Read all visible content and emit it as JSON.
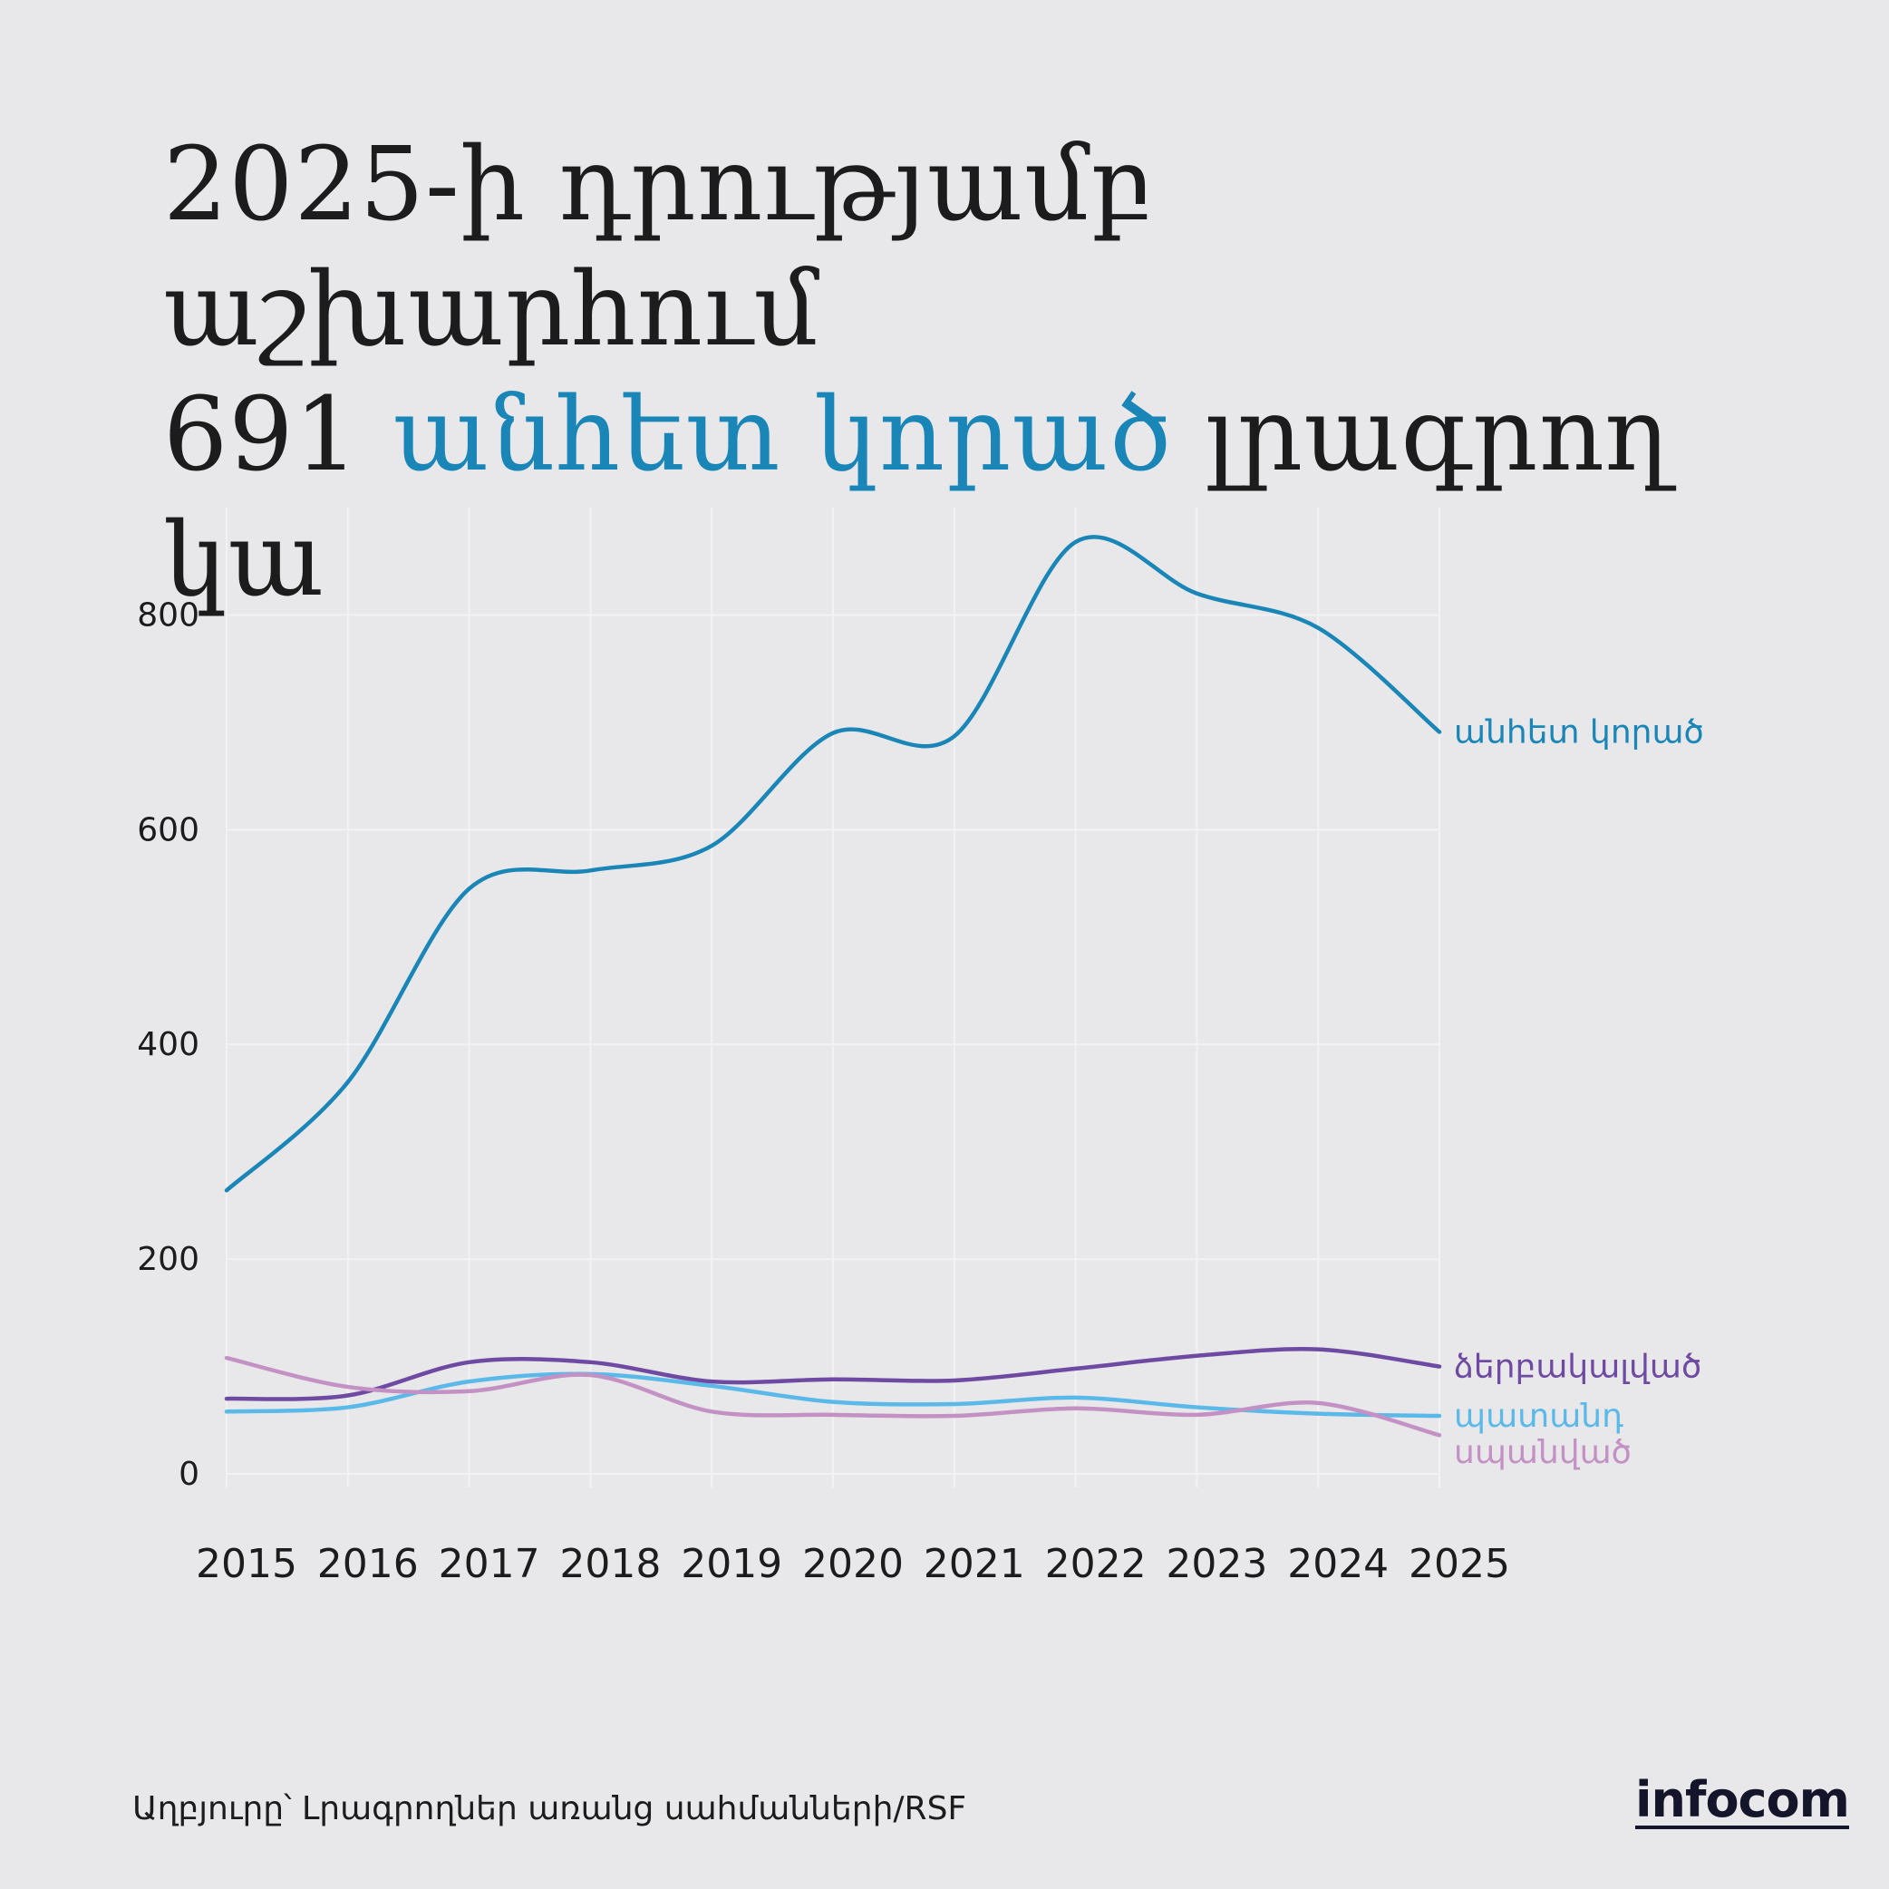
{
  "title": {
    "line1": "2025-ի դրությամբ աշխարհում",
    "line2_prefix": "691 ",
    "line2_highlight": "անհետ կորած",
    "line2_suffix": " լրագրող կա"
  },
  "source": "Աղբյուրը՝ Լրագրողներ առանց սահմանների/RSF",
  "brand": "infocom",
  "chart_data": {
    "type": "line",
    "x": [
      2015,
      2016,
      2017,
      2018,
      2019,
      2020,
      2021,
      2022,
      2023,
      2024,
      2025
    ],
    "ylim": [
      0,
      900
    ],
    "yticks": [
      0,
      200,
      400,
      600,
      800
    ],
    "grid": true,
    "series": [
      {
        "name": "անհետ կորած",
        "color": "#1a86b8",
        "values": [
          264,
          365,
          545,
          562,
          585,
          690,
          687,
          868,
          820,
          788,
          691
        ]
      },
      {
        "name": "ձերբակալված",
        "color": "#6f4aa2",
        "values": [
          70,
          73,
          104,
          104,
          86,
          88,
          87,
          98,
          110,
          116,
          100
        ]
      },
      {
        "name": "պատանդ",
        "color": "#5ab9e8",
        "values": [
          58,
          62,
          86,
          93,
          82,
          67,
          65,
          71,
          62,
          56,
          54
        ]
      },
      {
        "name": "սպանված",
        "color": "#c391c4",
        "values": [
          108,
          81,
          77,
          92,
          58,
          55,
          54,
          61,
          55,
          66,
          36
        ]
      }
    ]
  }
}
